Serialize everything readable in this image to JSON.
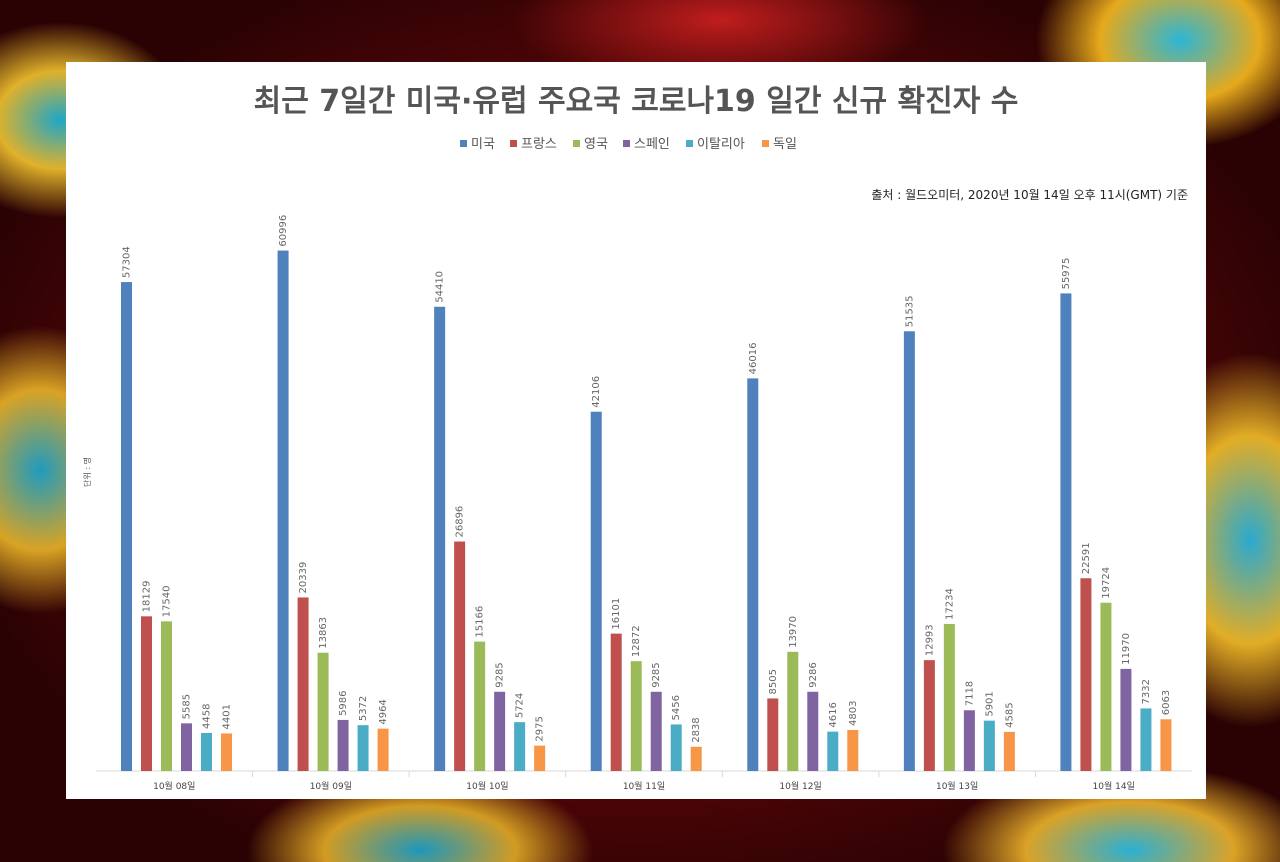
{
  "chart_data": {
    "type": "bar",
    "title": "최근 7일간 미국·유럽 주요국 코로나19 일간 신규 확진자 수",
    "source": "출처 : 월드오미터, 2020년 10월 14일 오후 11시(GMT) 기준",
    "ylabel": "단위 : 명",
    "xlabel": "",
    "ylim": [
      0,
      62000
    ],
    "grid": false,
    "legend_position": "top-center",
    "categories": [
      "10월 08일",
      "10월 09일",
      "10월 10일",
      "10월 11일",
      "10월 12일",
      "10월 13일",
      "10월 14일"
    ],
    "series": [
      {
        "name": "미국",
        "color": "#4f81bd",
        "values": [
          57304,
          60996,
          54410,
          42106,
          46016,
          51535,
          55975
        ]
      },
      {
        "name": "프랑스",
        "color": "#c0504d",
        "values": [
          18129,
          20339,
          26896,
          16101,
          8505,
          12993,
          22591
        ]
      },
      {
        "name": "영국",
        "color": "#9bbb59",
        "values": [
          17540,
          13863,
          15166,
          12872,
          13970,
          17234,
          19724
        ]
      },
      {
        "name": "스페인",
        "color": "#8064a2",
        "values": [
          5585,
          5986,
          9285,
          9285,
          9286,
          7118,
          11970
        ]
      },
      {
        "name": "이탈리아",
        "color": "#4bacc6",
        "values": [
          4458,
          5372,
          5724,
          5456,
          4616,
          5901,
          7332
        ]
      },
      {
        "name": "독일",
        "color": "#f79646",
        "values": [
          4401,
          4964,
          2975,
          2838,
          4803,
          4585,
          6063
        ]
      }
    ]
  }
}
